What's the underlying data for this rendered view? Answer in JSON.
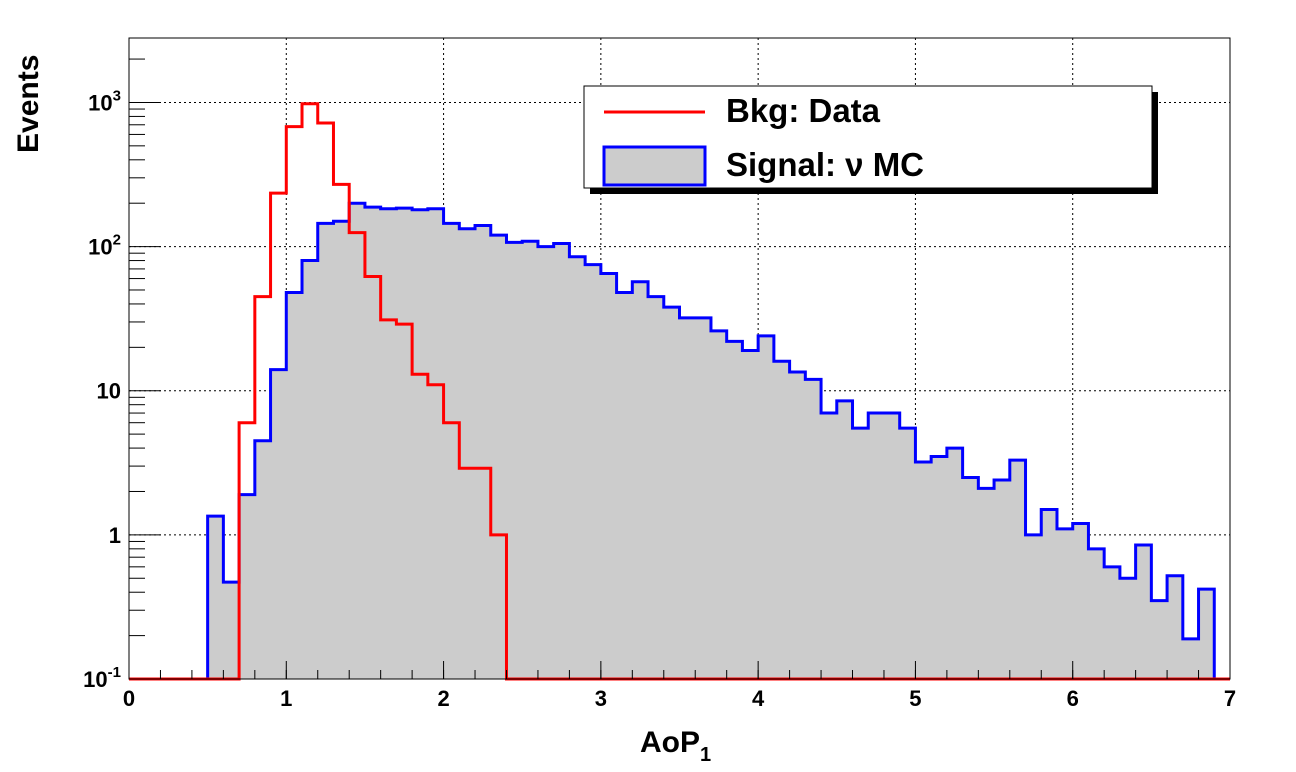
{
  "chart_data": {
    "type": "histogram",
    "xlabel": "AoP",
    "xlabel_sub": "1",
    "ylabel": "Events",
    "xlim": [
      0,
      7
    ],
    "ylim": [
      0.1,
      2800
    ],
    "yscale": "log",
    "grid": true,
    "legend_position": "top-right",
    "bin_width": 0.1,
    "x_ticks": [
      "0",
      "1",
      "2",
      "3",
      "4",
      "5",
      "6",
      "7"
    ],
    "y_ticks": [
      {
        "value": 0.1,
        "base": "10",
        "exp": "-1"
      },
      {
        "value": 1,
        "base": "1",
        "exp": ""
      },
      {
        "value": 10,
        "base": "10",
        "exp": ""
      },
      {
        "value": 100,
        "base": "10",
        "exp": "2"
      },
      {
        "value": 1000,
        "base": "10",
        "exp": "3"
      }
    ],
    "series": [
      {
        "name": "Signal: ν MC",
        "style": "filled-step",
        "color": "#0000ff",
        "fill": "#cccccc",
        "x_start": 0.5,
        "values": [
          1.35,
          0.47,
          1.9,
          4.5,
          14,
          48,
          80,
          145,
          150,
          200,
          188,
          183,
          185,
          180,
          183,
          145,
          133,
          140,
          120,
          107,
          109,
          100,
          105,
          85,
          75,
          65,
          48,
          57,
          45,
          38,
          32,
          32,
          26,
          22,
          19,
          24,
          16,
          13.5,
          12,
          7,
          8.5,
          5.5,
          7,
          7,
          5.5,
          3.2,
          3.5,
          4,
          2.5,
          2.1,
          2.4,
          3.3,
          1,
          1.5,
          1.1,
          1.2,
          0.8,
          0.6,
          0.5,
          0.85,
          0.35,
          0.52,
          0.19,
          0.42
        ]
      },
      {
        "name": "Bkg: Data",
        "style": "step",
        "color": "#ff0000",
        "x_start": 0.7,
        "values": [
          6,
          45,
          235,
          680,
          980,
          720,
          270,
          125,
          62,
          31,
          29,
          13,
          11,
          6,
          2.9,
          2.9,
          1
        ]
      }
    ]
  }
}
